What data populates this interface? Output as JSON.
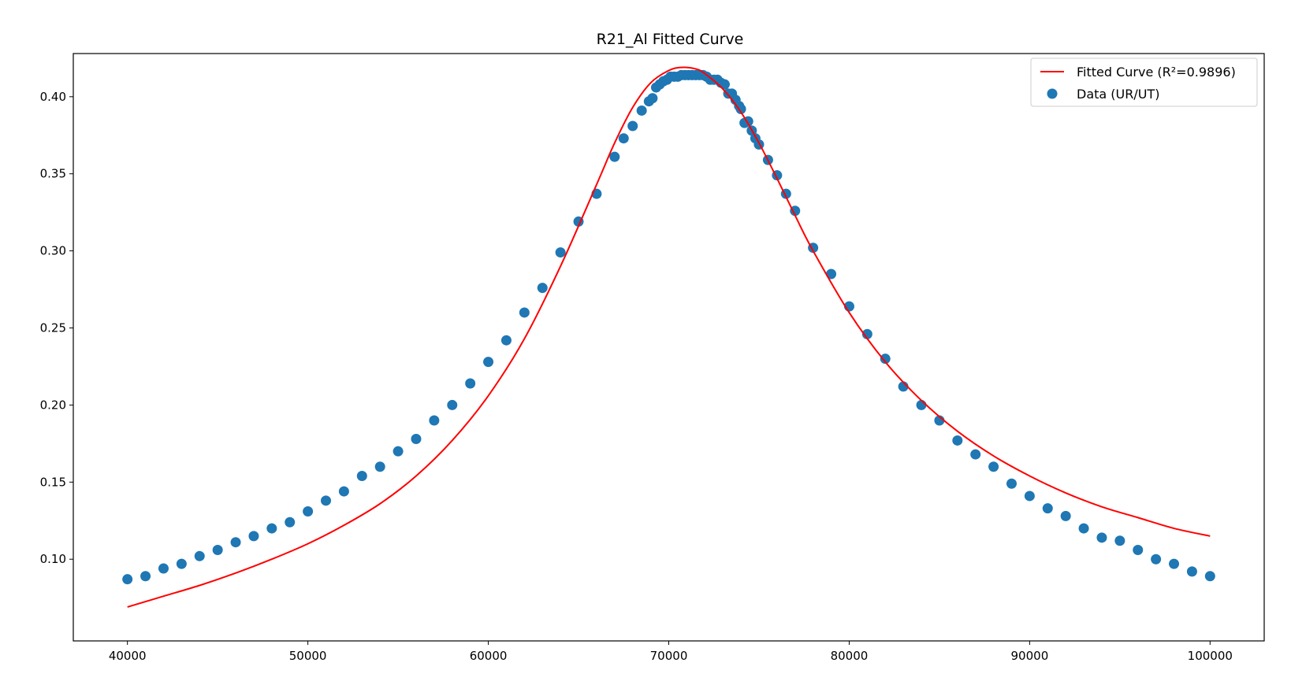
{
  "chart_data": {
    "type": "scatter",
    "title": "R21_Al Fitted Curve",
    "xlabel": "",
    "ylabel": "",
    "xlim": [
      37000,
      103000
    ],
    "ylim": [
      0.047,
      0.428
    ],
    "x_ticks": [
      40000,
      50000,
      60000,
      70000,
      80000,
      90000,
      100000
    ],
    "x_tick_labels": [
      "40000",
      "50000",
      "60000",
      "70000",
      "80000",
      "90000",
      "100000"
    ],
    "y_ticks": [
      0.1,
      0.15,
      0.2,
      0.25,
      0.3,
      0.35,
      0.4
    ],
    "y_tick_labels": [
      "0.10",
      "0.15",
      "0.20",
      "0.25",
      "0.30",
      "0.35",
      "0.40"
    ],
    "grid": false,
    "legend_position": "top-right",
    "series": [
      {
        "name": "Fitted Curve (R²=0.9896)",
        "kind": "line",
        "color": "#ff0000",
        "x": [
          40000,
          42000,
          44000,
          46000,
          48000,
          50000,
          52000,
          54000,
          56000,
          58000,
          60000,
          62000,
          64000,
          66000,
          67000,
          68000,
          69000,
          70000,
          70700,
          71500,
          72000,
          73000,
          74000,
          75000,
          76000,
          77000,
          78000,
          80000,
          82000,
          84000,
          86000,
          88000,
          90000,
          92000,
          94000,
          96000,
          98000,
          100000
        ],
        "y": [
          0.069,
          0.076,
          0.083,
          0.091,
          0.1,
          0.11,
          0.122,
          0.136,
          0.154,
          0.177,
          0.206,
          0.243,
          0.29,
          0.343,
          0.37,
          0.393,
          0.409,
          0.417,
          0.419,
          0.418,
          0.415,
          0.405,
          0.39,
          0.37,
          0.347,
          0.323,
          0.3,
          0.26,
          0.228,
          0.203,
          0.183,
          0.167,
          0.154,
          0.143,
          0.134,
          0.127,
          0.12,
          0.115
        ]
      },
      {
        "name": "Data (UR/UT)",
        "kind": "scatter",
        "color": "#1f77b4",
        "x": [
          40000,
          41000,
          42000,
          43000,
          44000,
          45000,
          46000,
          47000,
          48000,
          49000,
          50000,
          51000,
          52000,
          53000,
          54000,
          55000,
          56000,
          57000,
          58000,
          59000,
          60000,
          61000,
          62000,
          63000,
          64000,
          65000,
          66000,
          67000,
          67500,
          68000,
          68500,
          68900,
          69100,
          69300,
          69500,
          69700,
          69900,
          70100,
          70300,
          70500,
          70700,
          70900,
          71100,
          71300,
          71500,
          71700,
          71900,
          72100,
          72300,
          72500,
          72700,
          72900,
          73100,
          73300,
          73500,
          73700,
          73900,
          74000,
          74200,
          74400,
          74600,
          74800,
          75000,
          75500,
          76000,
          76500,
          77000,
          78000,
          79000,
          80000,
          81000,
          82000,
          83000,
          84000,
          85000,
          86000,
          87000,
          88000,
          89000,
          90000,
          91000,
          92000,
          93000,
          94000,
          95000,
          96000,
          97000,
          98000,
          99000,
          100000
        ],
        "y": [
          0.087,
          0.089,
          0.094,
          0.097,
          0.102,
          0.106,
          0.111,
          0.115,
          0.12,
          0.124,
          0.131,
          0.138,
          0.144,
          0.154,
          0.16,
          0.17,
          0.178,
          0.19,
          0.2,
          0.214,
          0.228,
          0.242,
          0.26,
          0.276,
          0.299,
          0.319,
          0.337,
          0.361,
          0.373,
          0.381,
          0.391,
          0.397,
          0.399,
          0.406,
          0.408,
          0.41,
          0.411,
          0.413,
          0.413,
          0.413,
          0.414,
          0.414,
          0.414,
          0.414,
          0.414,
          0.414,
          0.414,
          0.413,
          0.411,
          0.411,
          0.411,
          0.409,
          0.408,
          0.402,
          0.402,
          0.398,
          0.394,
          0.392,
          0.383,
          0.384,
          0.378,
          0.373,
          0.369,
          0.359,
          0.349,
          0.337,
          0.326,
          0.302,
          0.285,
          0.264,
          0.246,
          0.23,
          0.212,
          0.2,
          0.19,
          0.177,
          0.168,
          0.16,
          0.149,
          0.141,
          0.133,
          0.128,
          0.12,
          0.114,
          0.112,
          0.106,
          0.1,
          0.097,
          0.092,
          0.089
        ]
      }
    ]
  }
}
